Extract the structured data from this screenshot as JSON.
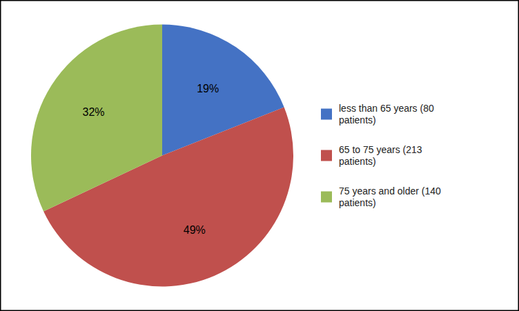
{
  "chart_data": {
    "type": "pie",
    "categories": [
      "less than 65 years (80\npatients)",
      "65 to 75 years (213\npatients)",
      "75 years and older (140\npatients)"
    ],
    "values": [
      19,
      49,
      32
    ],
    "value_labels": [
      "19%",
      "49%",
      "32%"
    ],
    "colors": [
      "#4472C4",
      "#C0504D",
      "#9BBB59"
    ],
    "data_labels": true,
    "legend": "right"
  }
}
